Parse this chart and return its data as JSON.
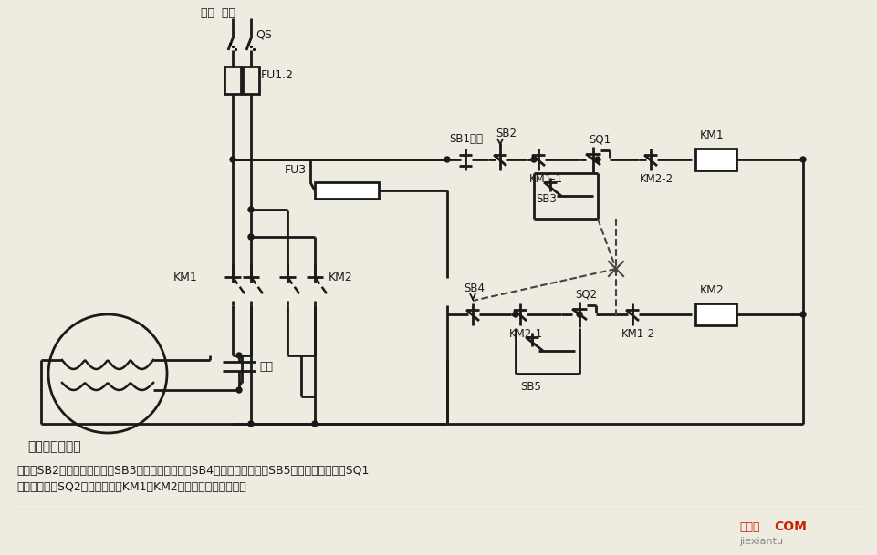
{
  "bg_color": "#eeebe0",
  "line_color": "#1a1a1a",
  "text_color": "#1a1a1a",
  "bottom_label": "单相电容电动机",
  "desc1": "说明：SB2为上升启动按钮，SB3为上升点动按钮，SB4为下降启动按钮，SB5为下降点动按钮；SQ1",
  "desc2": "为最高限位，SQ2为最低限位。KM1、KM2可用中间继电器代替。",
  "wm1": "接线图",
  "wm2": "COM",
  "wm3": "jiexiantu"
}
